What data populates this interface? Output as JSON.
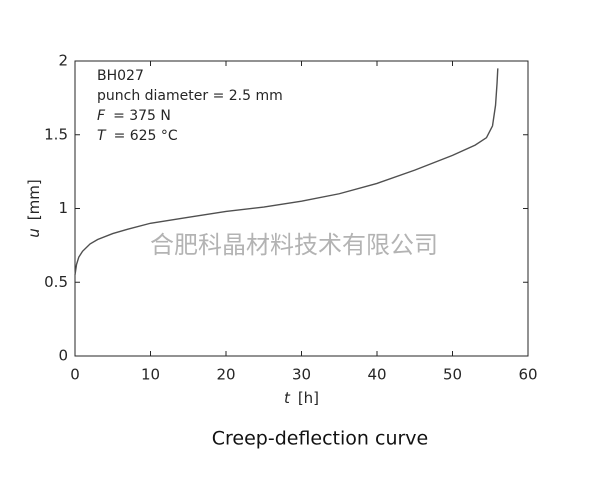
{
  "chart_data": {
    "type": "line",
    "caption": "Creep-deflection curve",
    "watermark": "合肥科晶材料技术有限公司",
    "annotations": [
      "BH027",
      "punch diameter = 2.5 mm",
      {
        "symbol": "F",
        "text": "= 375 N"
      },
      {
        "symbol": "T",
        "text": "= 625 °C"
      }
    ],
    "xlabel": {
      "symbol": "t",
      "unit": "[h]"
    },
    "ylabel": {
      "symbol": "u",
      "unit": "[mm]"
    },
    "x": [
      0,
      0.2,
      0.5,
      1,
      2,
      3,
      5,
      7,
      10,
      15,
      20,
      25,
      30,
      35,
      40,
      45,
      50,
      53,
      54.5,
      55.3,
      55.7,
      55.9,
      56
    ],
    "values": [
      0.55,
      0.62,
      0.67,
      0.71,
      0.76,
      0.79,
      0.83,
      0.86,
      0.9,
      0.94,
      0.98,
      1.01,
      1.05,
      1.1,
      1.17,
      1.26,
      1.36,
      1.43,
      1.48,
      1.56,
      1.7,
      1.85,
      1.95
    ],
    "color": "#505050",
    "xlim": [
      0,
      60
    ],
    "xticks": [
      0,
      10,
      20,
      30,
      40,
      50,
      60
    ],
    "ylim": [
      0,
      2
    ],
    "yticks": [
      0,
      0.5,
      1,
      1.5,
      2
    ]
  }
}
